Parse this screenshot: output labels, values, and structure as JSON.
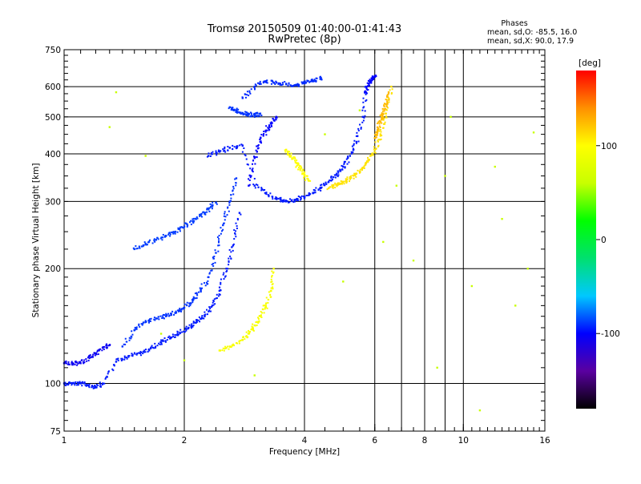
{
  "chart_data": {
    "type": "scatter",
    "title": "Tromsø 20150509 01:40:00-01:41:43",
    "subtitle": "RwPretec (8p)",
    "info_box": {
      "heading": "Phases",
      "line_o": "mean, sd,O: -85.5, 16.0",
      "line_x": "mean, sd,X:  90.0, 17.9"
    },
    "xlabel": "Frequency [MHz]",
    "ylabel": "Stationary phase Virtual Height [km]",
    "x_scale": "log",
    "y_scale": "log",
    "xlim": [
      1,
      16
    ],
    "ylim": [
      75,
      750
    ],
    "x_ticks": [
      1,
      2,
      4,
      6,
      8,
      10,
      16
    ],
    "x_tick_labels": [
      "1",
      "2",
      "4",
      "6",
      "8",
      "10",
      "16"
    ],
    "y_ticks": [
      75,
      100,
      200,
      300,
      400,
      500,
      600,
      750
    ],
    "y_tick_labels": [
      "75",
      "100",
      "200",
      "300",
      "400",
      "500",
      "600",
      "750"
    ],
    "grid": true,
    "colorbar": {
      "label": "[deg]",
      "range": [
        -180,
        180
      ],
      "ticks": [
        100,
        0,
        -100
      ],
      "tick_labels": [
        "100",
        "0",
        "-100"
      ],
      "colors": [
        "#000000",
        "#5a00a0",
        "#0000ff",
        "#00c8ff",
        "#00e070",
        "#00ff00",
        "#c8ff00",
        "#ffff00",
        "#ff9000",
        "#ff0000"
      ]
    },
    "series": [
      {
        "phase": -95,
        "x": [
          1.0,
          1.05,
          1.1,
          1.15,
          1.2,
          1.25,
          1.35,
          1.45,
          1.55,
          1.65,
          1.75,
          1.85,
          1.95,
          2.05,
          2.15,
          2.25,
          2.35,
          2.45,
          2.55,
          2.65,
          2.75
        ],
        "y": [
          100,
          100,
          100,
          99,
          98,
          100,
          114,
          118,
          120,
          124,
          128,
          132,
          136,
          140,
          145,
          150,
          160,
          175,
          200,
          230,
          280
        ]
      },
      {
        "phase": -105,
        "x": [
          1.0,
          1.05,
          1.1,
          1.15,
          1.2,
          1.25,
          1.3
        ],
        "y": [
          113,
          113,
          113,
          117,
          120,
          124,
          126
        ]
      },
      {
        "phase": -90,
        "x": [
          1.4,
          1.5,
          1.6,
          1.7,
          1.8,
          1.9,
          2.0,
          2.1,
          2.2,
          2.3,
          2.4,
          2.5,
          2.6,
          2.7
        ],
        "y": [
          125,
          138,
          145,
          148,
          150,
          153,
          158,
          165,
          175,
          190,
          220,
          260,
          300,
          345
        ]
      },
      {
        "phase": -88,
        "x": [
          1.5,
          1.6,
          1.7,
          1.8,
          1.9,
          2.0,
          2.1,
          2.2,
          2.3,
          2.4
        ],
        "y": [
          225,
          232,
          238,
          244,
          250,
          258,
          266,
          276,
          286,
          298
        ]
      },
      {
        "phase": -95,
        "x": [
          2.3,
          2.45,
          2.6,
          2.8,
          3.0,
          3.2,
          3.4,
          3.6,
          3.8,
          4.0,
          4.2,
          4.4,
          4.6,
          4.8,
          5.0,
          5.2,
          5.4,
          5.6,
          5.7
        ],
        "y": [
          395,
          405,
          415,
          420,
          330,
          315,
          305,
          300,
          303,
          308,
          316,
          326,
          338,
          352,
          370,
          395,
          430,
          500,
          600
        ]
      },
      {
        "phase": -100,
        "x": [
          2.9,
          3.0,
          3.1,
          3.2,
          3.3,
          3.4
        ],
        "y": [
          330,
          390,
          430,
          460,
          480,
          500
        ]
      },
      {
        "phase": -92,
        "x": [
          2.8,
          3.0,
          3.2,
          3.4,
          3.6,
          3.8,
          4.0,
          4.2,
          4.4
        ],
        "y": [
          560,
          600,
          620,
          615,
          610,
          605,
          612,
          622,
          632
        ]
      },
      {
        "phase": -90,
        "x": [
          2.6,
          2.7,
          2.8,
          2.9,
          3.0,
          3.1
        ],
        "y": [
          530,
          520,
          512,
          508,
          505,
          510
        ]
      },
      {
        "phase": 95,
        "x": [
          2.45,
          2.6,
          2.8,
          2.9,
          3.0,
          3.1,
          3.2,
          3.3,
          3.35
        ],
        "y": [
          122,
          125,
          130,
          135,
          142,
          150,
          160,
          175,
          200
        ]
      },
      {
        "phase": 100,
        "x": [
          3.6,
          3.7,
          3.8,
          3.9,
          4.0,
          4.1
        ],
        "y": [
          410,
          395,
          380,
          365,
          350,
          340
        ]
      },
      {
        "phase": 110,
        "x": [
          4.6,
          4.8,
          5.0,
          5.2,
          5.4,
          5.6,
          5.8,
          6.0,
          6.2,
          6.4,
          6.6
        ],
        "y": [
          325,
          332,
          338,
          345,
          355,
          368,
          385,
          410,
          450,
          510,
          600
        ]
      },
      {
        "phase": 125,
        "x": [
          6.0,
          6.1,
          6.2,
          6.3,
          6.4,
          6.5
        ],
        "y": [
          440,
          460,
          485,
          510,
          540,
          580
        ]
      },
      {
        "phase": -100,
        "x": [
          5.7,
          5.8,
          5.9,
          6.0
        ],
        "y": [
          580,
          610,
          630,
          640
        ]
      },
      {
        "phase": 60,
        "x": [
          1.3,
          1.35,
          1.6,
          1.75,
          2.0,
          3.0,
          4.5,
          5.0,
          5.5,
          6.3,
          6.8,
          7.5,
          8.6,
          9.0,
          9.3,
          10.5,
          11.0,
          12.0,
          12.5,
          13.5,
          14.5,
          15.0
        ],
        "y": [
          470,
          580,
          395,
          135,
          115,
          105,
          450,
          185,
          520,
          235,
          330,
          210,
          110,
          350,
          500,
          180,
          85,
          370,
          270,
          160,
          200,
          455
        ]
      }
    ]
  }
}
